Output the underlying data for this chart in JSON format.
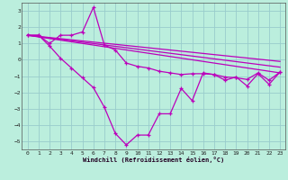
{
  "xlabel": "Windchill (Refroidissement éolien,°C)",
  "bg_color": "#bbeedd",
  "line_color": "#bb00bb",
  "grid_color": "#99cccc",
  "xlim": [
    -0.5,
    23.5
  ],
  "ylim": [
    -5.5,
    3.5
  ],
  "xticks": [
    0,
    1,
    2,
    3,
    4,
    5,
    6,
    7,
    8,
    9,
    10,
    11,
    12,
    13,
    14,
    15,
    16,
    17,
    18,
    19,
    20,
    21,
    22,
    23
  ],
  "yticks": [
    -5,
    -4,
    -3,
    -2,
    -1,
    0,
    1,
    2,
    3
  ],
  "line1_x": [
    0,
    1,
    2,
    3,
    4,
    5,
    6,
    7,
    8,
    9,
    10,
    11,
    12,
    13,
    14,
    15,
    16,
    17,
    18,
    19,
    20,
    21,
    22,
    23
  ],
  "line1_y": [
    1.5,
    1.5,
    1.0,
    1.5,
    1.5,
    1.7,
    3.2,
    0.9,
    0.6,
    -0.2,
    -0.4,
    -0.5,
    -0.7,
    -0.8,
    -0.9,
    -0.85,
    -0.85,
    -0.9,
    -1.05,
    -1.1,
    -1.2,
    -0.8,
    -1.25,
    -0.75
  ],
  "line2_x": [
    0,
    1,
    2,
    3,
    4,
    5,
    6,
    7,
    8,
    9,
    10,
    11,
    12,
    13,
    14,
    15,
    16,
    17,
    18,
    19,
    20,
    21,
    22,
    23
  ],
  "line2_y": [
    1.5,
    1.5,
    0.85,
    0.1,
    -0.5,
    -1.1,
    -1.7,
    -2.9,
    -4.5,
    -5.2,
    -4.6,
    -4.6,
    -3.3,
    -3.3,
    -1.75,
    -2.5,
    -0.8,
    -0.9,
    -1.25,
    -1.05,
    -1.6,
    -0.85,
    -1.5,
    -0.75
  ],
  "line3_x": [
    0,
    23
  ],
  "line3_y": [
    1.5,
    -0.8
  ],
  "line4_x": [
    0,
    23
  ],
  "line4_y": [
    1.5,
    -0.45
  ],
  "line5_x": [
    0,
    23
  ],
  "line5_y": [
    1.5,
    -0.1
  ]
}
